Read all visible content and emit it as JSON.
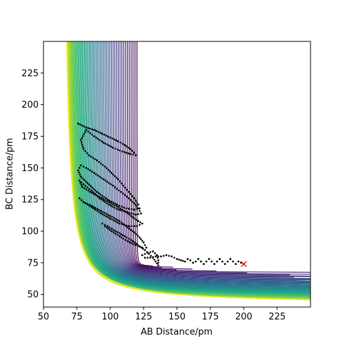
{
  "chart_data": {
    "type": "contour",
    "title": "",
    "xlabel": "AB Distance/pm",
    "ylabel": "BC Distance/pm",
    "xlim": [
      50,
      250
    ],
    "ylim": [
      40,
      250
    ],
    "xticks": [
      50,
      75,
      100,
      125,
      150,
      175,
      200,
      225
    ],
    "yticks": [
      50,
      75,
      100,
      125,
      150,
      175,
      200,
      225
    ],
    "grid": false,
    "legend": "none",
    "colormap": "viridis",
    "contour_levels": 60,
    "trajectory": {
      "color": "#000000",
      "marker": "dot",
      "points": [
        [
          76,
          185
        ],
        [
          82,
          182
        ],
        [
          88,
          180
        ],
        [
          94,
          177
        ],
        [
          100,
          174
        ],
        [
          106,
          171
        ],
        [
          111,
          168
        ],
        [
          115,
          165
        ],
        [
          118,
          162
        ],
        [
          119,
          160
        ],
        [
          115,
          161
        ],
        [
          109,
          163
        ],
        [
          102,
          166
        ],
        [
          95,
          170
        ],
        [
          88,
          175
        ],
        [
          82,
          180
        ],
        [
          78,
          172
        ],
        [
          80,
          165
        ],
        [
          84,
          160
        ],
        [
          90,
          156
        ],
        [
          96,
          151
        ],
        [
          101,
          146
        ],
        [
          106,
          141
        ],
        [
          110,
          136
        ],
        [
          114,
          131
        ],
        [
          118,
          126
        ],
        [
          121,
          121
        ],
        [
          122,
          118
        ],
        [
          118,
          117
        ],
        [
          112,
          118
        ],
        [
          105,
          121
        ],
        [
          98,
          125
        ],
        [
          90,
          131
        ],
        [
          83,
          138
        ],
        [
          78,
          143
        ],
        [
          76,
          148
        ],
        [
          78,
          152
        ],
        [
          82,
          150
        ],
        [
          88,
          146
        ],
        [
          95,
          141
        ],
        [
          102,
          136
        ],
        [
          108,
          131
        ],
        [
          114,
          126
        ],
        [
          118,
          122
        ],
        [
          121,
          118
        ],
        [
          123,
          114
        ],
        [
          119,
          113
        ],
        [
          113,
          115
        ],
        [
          106,
          117
        ],
        [
          99,
          121
        ],
        [
          92,
          126
        ],
        [
          86,
          132
        ],
        [
          80,
          137
        ],
        [
          77,
          140
        ],
        [
          79,
          135
        ],
        [
          85,
          131
        ],
        [
          92,
          127
        ],
        [
          99,
          123
        ],
        [
          106,
          119
        ],
        [
          112,
          115
        ],
        [
          117,
          111
        ],
        [
          121,
          108
        ],
        [
          124,
          106
        ],
        [
          120,
          104
        ],
        [
          114,
          104
        ],
        [
          107,
          106
        ],
        [
          100,
          110
        ],
        [
          93,
          114
        ],
        [
          86,
          119
        ],
        [
          80,
          123
        ],
        [
          77,
          126
        ],
        [
          80,
          123
        ],
        [
          86,
          120
        ],
        [
          93,
          116
        ],
        [
          100,
          112
        ],
        [
          107,
          108
        ],
        [
          113,
          103
        ],
        [
          118,
          99
        ],
        [
          122,
          95
        ],
        [
          125,
          91
        ],
        [
          127,
          87
        ],
        [
          124,
          87
        ],
        [
          119,
          89
        ],
        [
          113,
          92
        ],
        [
          107,
          96
        ],
        [
          101,
          100
        ],
        [
          96,
          104
        ],
        [
          94,
          106
        ],
        [
          98,
          104
        ],
        [
          104,
          100
        ],
        [
          111,
          96
        ],
        [
          117,
          92
        ],
        [
          122,
          88
        ],
        [
          126,
          85
        ],
        [
          129,
          82
        ],
        [
          132,
          79
        ],
        [
          134,
          76
        ],
        [
          136,
          73
        ],
        [
          136,
          77
        ],
        [
          135,
          81
        ],
        [
          132,
          84
        ],
        [
          128,
          83
        ],
        [
          124,
          81
        ],
        [
          126,
          79
        ],
        [
          130,
          79
        ],
        [
          134,
          80
        ],
        [
          138,
          80
        ],
        [
          142,
          81
        ],
        [
          146,
          80
        ],
        [
          150,
          78
        ],
        [
          153,
          77
        ],
        [
          156,
          76
        ],
        [
          158,
          78
        ],
        [
          160,
          77
        ],
        [
          162,
          75
        ],
        [
          164,
          76
        ],
        [
          166,
          78
        ],
        [
          168,
          76
        ],
        [
          170,
          74
        ],
        [
          172,
          76
        ],
        [
          174,
          78
        ],
        [
          176,
          76
        ],
        [
          178,
          74
        ],
        [
          180,
          76
        ],
        [
          182,
          78
        ],
        [
          184,
          76
        ],
        [
          186,
          74
        ],
        [
          188,
          76
        ],
        [
          190,
          78
        ],
        [
          192,
          76
        ],
        [
          194,
          74
        ],
        [
          196,
          76
        ],
        [
          198,
          75
        ],
        [
          200,
          74
        ]
      ]
    },
    "end_marker": {
      "x": 200,
      "y": 74,
      "symbol": "×",
      "color": "#ff0000"
    }
  }
}
